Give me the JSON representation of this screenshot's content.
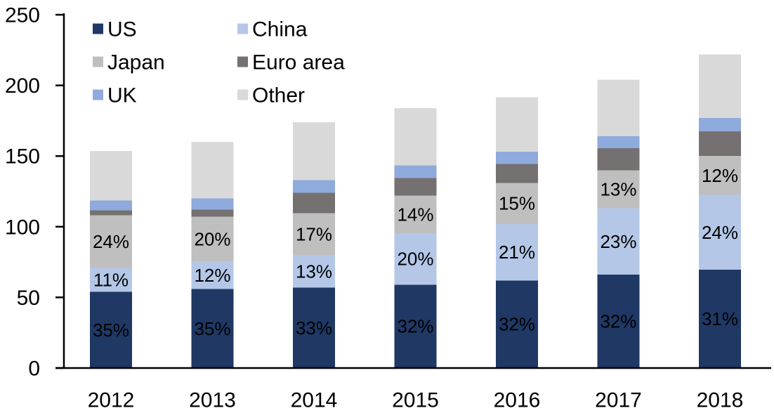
{
  "chart_data": {
    "type": "bar",
    "stacked": true,
    "title": "",
    "categories": [
      "2012",
      "2013",
      "2014",
      "2015",
      "2016",
      "2017",
      "2018"
    ],
    "series": [
      {
        "name": "US",
        "color": "#1f3864",
        "label_color": "#ffffff",
        "values": [
          54,
          56,
          57,
          59,
          62,
          66,
          69.5
        ],
        "labels": [
          "35%",
          "35%",
          "33%",
          "32%",
          "32%",
          "32%",
          "31%"
        ]
      },
      {
        "name": "China",
        "color": "#b4c7e7",
        "label_color": "#000000",
        "values": [
          17,
          19.5,
          23,
          36.5,
          40,
          47,
          53
        ],
        "labels": [
          "11%",
          "12%",
          "13%",
          "20%",
          "21%",
          "23%",
          "24%"
        ]
      },
      {
        "name": "Japan",
        "color": "#bfbfbf",
        "label_color": "#000000",
        "values": [
          37,
          31.5,
          29.5,
          26.5,
          29,
          27,
          27.5
        ],
        "labels": [
          "24%",
          "20%",
          "17%",
          "14%",
          "15%",
          "13%",
          "12%"
        ]
      },
      {
        "name": "Euro area",
        "color": "#767171",
        "label_color": "#000000",
        "values": [
          3.5,
          5,
          14.5,
          12.5,
          13.5,
          15.5,
          17.5
        ],
        "labels": [
          "",
          "",
          "",
          "",
          "",
          "",
          ""
        ]
      },
      {
        "name": "UK",
        "color": "#8faadc",
        "label_color": "#000000",
        "values": [
          7,
          8,
          9,
          9,
          8.5,
          8.5,
          9.5
        ],
        "labels": [
          "",
          "",
          "",
          "",
          "",
          "",
          ""
        ]
      },
      {
        "name": "Other",
        "color": "#d9d9d9",
        "label_color": "#000000",
        "values": [
          35,
          40,
          41,
          40.5,
          38.5,
          40,
          45
        ],
        "labels": [
          "",
          "",
          "",
          "",
          "",
          "",
          ""
        ]
      }
    ],
    "totals": [
      153.5,
      160,
      174,
      184,
      191.5,
      204,
      222
    ],
    "ylim": [
      0,
      250
    ],
    "yticks": [
      "0",
      "50",
      "100",
      "150",
      "200",
      "250"
    ],
    "grid": false,
    "axis_color": "#000000",
    "background": "#ffffff",
    "legend": {
      "position": "top-left",
      "columns": 2,
      "order": [
        "US",
        "China",
        "Japan",
        "Euro area",
        "UK",
        "Other"
      ]
    }
  }
}
